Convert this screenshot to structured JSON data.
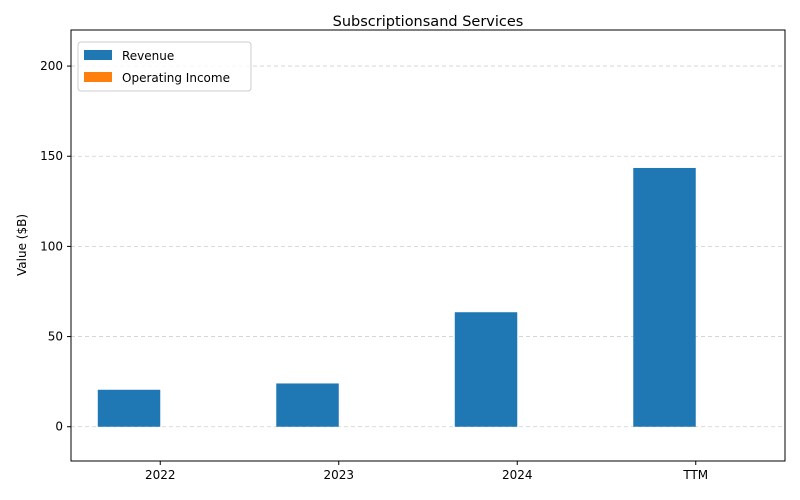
{
  "chart_data": {
    "type": "bar",
    "title": "Subscriptionsand Services",
    "xlabel": "",
    "ylabel": "Value ($B)",
    "categories": [
      "2022",
      "2023",
      "2024",
      "TTM"
    ],
    "series": [
      {
        "name": "Revenue",
        "color": "#1f77b4",
        "values": [
          20.5,
          24,
          63.5,
          143.5
        ]
      },
      {
        "name": "Operating Income",
        "color": "#ff7f0e",
        "values": [
          0,
          0,
          0,
          0
        ]
      }
    ],
    "ylim": [
      -19,
      220
    ],
    "yticks": [
      0,
      50,
      100,
      150,
      200
    ],
    "grid": "y, dashed",
    "legend": "top-left"
  }
}
